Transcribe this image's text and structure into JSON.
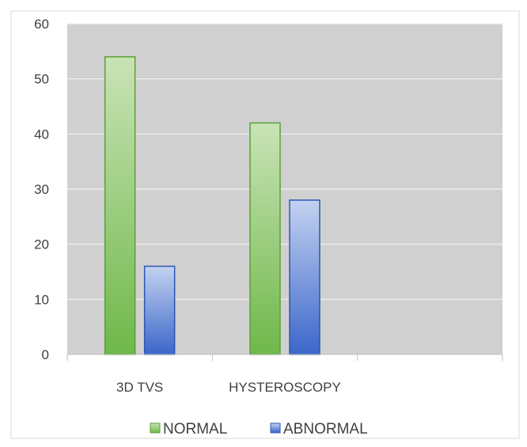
{
  "chart_data": {
    "type": "bar",
    "categories": [
      "3D TVS",
      "HYSTEROSCOPY",
      ""
    ],
    "series": [
      {
        "name": "NORMAL",
        "values": [
          54,
          42,
          null
        ],
        "color": "#6fb84a",
        "color_light": "#c9e3b6",
        "stroke": "#5aa03a"
      },
      {
        "name": "ABNORMAL",
        "values": [
          16,
          28,
          null
        ],
        "color": "#3b66c9",
        "color_light": "#c3d2f0",
        "stroke": "#2d55b3"
      }
    ],
    "ylim": [
      0,
      60
    ],
    "yticks": [
      0,
      10,
      20,
      30,
      40,
      50,
      60
    ],
    "grid": true,
    "legend_position": "bottom",
    "plot_background": "#d0d0d0",
    "gridline_color": "#f2f2f2"
  }
}
